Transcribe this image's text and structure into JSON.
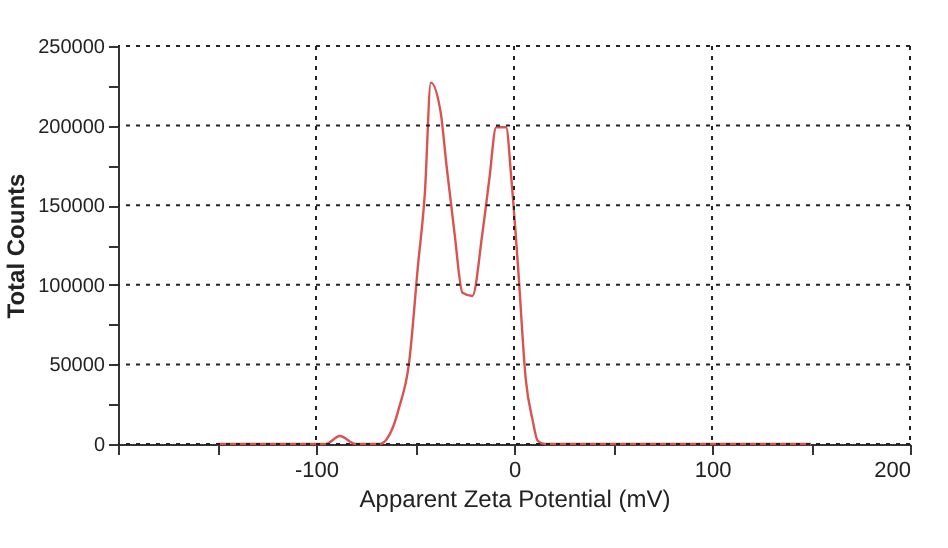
{
  "chart_data": {
    "type": "line",
    "xlabel": "Apparent Zeta Potential (mV)",
    "ylabel": "Total Counts",
    "x": [
      -150,
      -100,
      -95,
      -88,
      -80,
      -68,
      -61,
      -58,
      -53,
      -48.5,
      -45,
      -42,
      -37,
      -34,
      -30,
      -26,
      -21,
      -16,
      -12.5,
      -9,
      -4,
      -1.3,
      2,
      6,
      9.4,
      12,
      15.5,
      150
    ],
    "series": [
      {
        "color": "#d9534f",
        "values": [
          0,
          0,
          0,
          5000,
          0,
          0,
          11000,
          23000,
          51000,
          112000,
          158000,
          227000,
          208000,
          174000,
          132000,
          95000,
          93000,
          132000,
          166000,
          199000,
          199000,
          166000,
          112000,
          40000,
          15000,
          2000,
          0,
          0
        ]
      }
    ],
    "xlim": [
      -200,
      200
    ],
    "xticks": [
      {
        "value": -200,
        "label": null
      },
      {
        "value": -150,
        "label": null
      },
      -100,
      {
        "value": -50,
        "label": null
      },
      0,
      {
        "value": 50,
        "label": null
      },
      100,
      {
        "value": 150,
        "label": null
      },
      200
    ],
    "ylim": [
      0,
      250000
    ],
    "yticks": [
      0,
      {
        "value": 25000,
        "label": null
      },
      50000,
      {
        "value": 75000,
        "label": null
      },
      100000,
      {
        "value": 125000,
        "label": null
      },
      150000,
      {
        "value": 175000,
        "label": null
      },
      200000,
      {
        "value": 225000,
        "label": null
      },
      250000
    ],
    "grid": true,
    "marker": "none",
    "line_style": "solid"
  }
}
